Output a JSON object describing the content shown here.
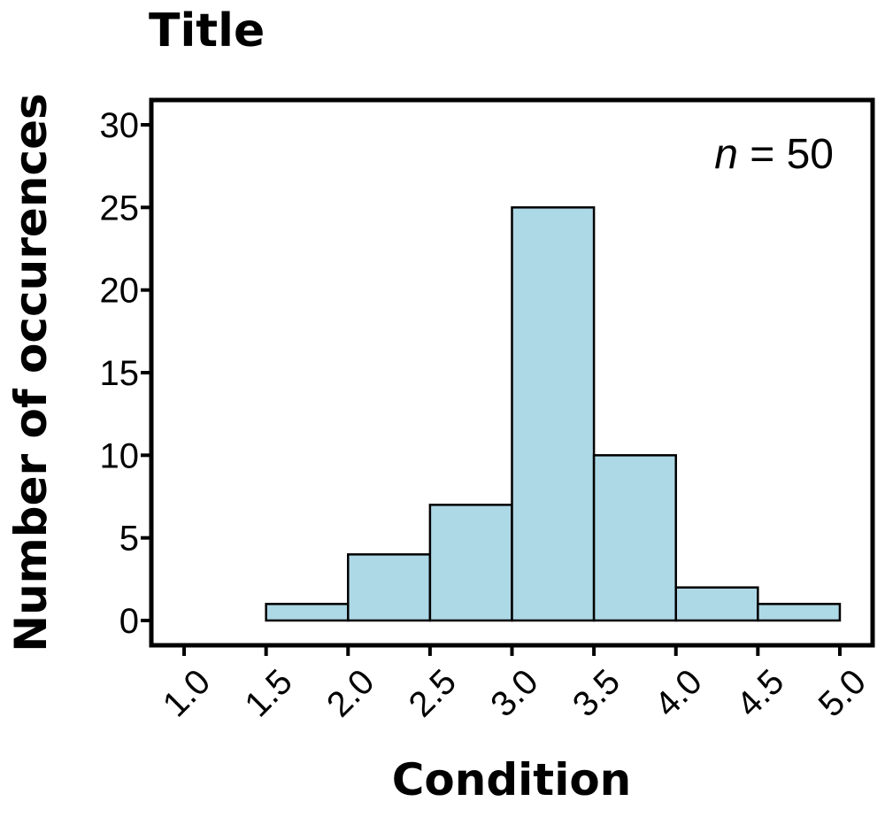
{
  "chart_data": {
    "type": "bar",
    "title": "Title",
    "xlabel": "Condition",
    "ylabel": "Number of occurences",
    "annotation": {
      "var": "n",
      "rest": " = 50"
    },
    "bin_edges": [
      1.0,
      1.5,
      2.0,
      2.5,
      3.0,
      3.5,
      4.0,
      4.5,
      5.0
    ],
    "values": [
      0,
      1,
      4,
      7,
      25,
      10,
      2,
      1
    ],
    "x_ticks": [
      "1.0",
      "1.5",
      "2.0",
      "2.5",
      "3.0",
      "3.5",
      "4.0",
      "4.5",
      "5.0"
    ],
    "y_ticks": [
      "0",
      "5",
      "10",
      "15",
      "20",
      "25",
      "30"
    ],
    "xlim": [
      0.8,
      5.2
    ],
    "ylim": [
      -1.5,
      31.5
    ],
    "grid": false,
    "bar_color": "#add8e6",
    "edge_color": "#000000"
  }
}
